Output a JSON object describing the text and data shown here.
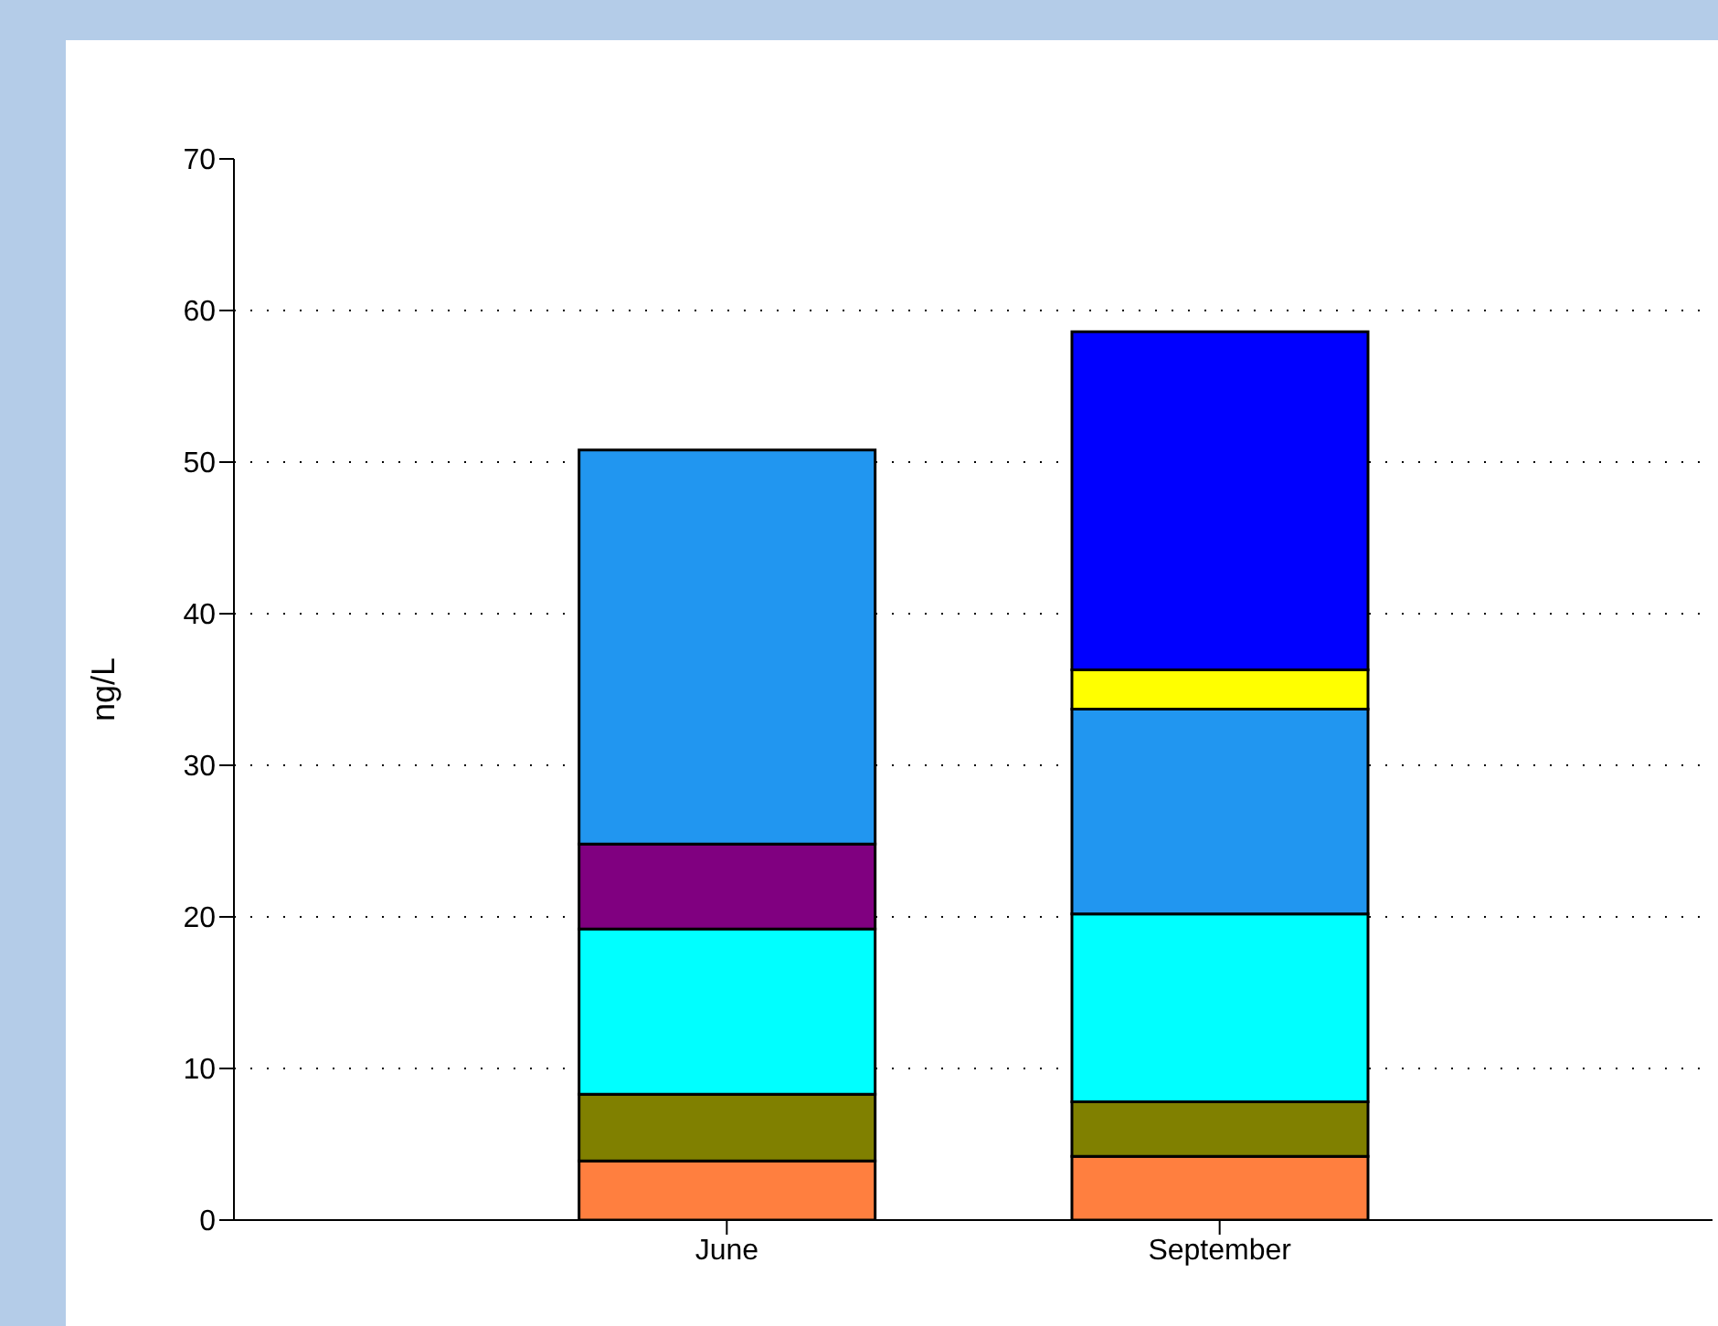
{
  "chart_data": {
    "type": "bar",
    "stacked": true,
    "ylabel": "ng/L",
    "categories": [
      "June",
      "September"
    ],
    "series": [
      {
        "color": "#ff7f3f",
        "values": [
          3.9,
          4.2
        ]
      },
      {
        "color": "#808000",
        "values": [
          4.4,
          3.6
        ]
      },
      {
        "color": "#00ffff",
        "values": [
          10.9,
          12.4
        ]
      },
      {
        "color": "#800080",
        "values": [
          5.6,
          null
        ]
      },
      {
        "color": "#2196f0",
        "values": [
          26.0,
          13.5
        ]
      },
      {
        "color": "#ffff00",
        "values": [
          null,
          2.6
        ]
      },
      {
        "color": "#0000ff",
        "values": [
          null,
          22.3
        ]
      }
    ],
    "ylim": [
      0,
      70
    ],
    "yticks": [
      0,
      10,
      20,
      30,
      40,
      50,
      60,
      70
    ],
    "grid": "y",
    "legend": false
  }
}
